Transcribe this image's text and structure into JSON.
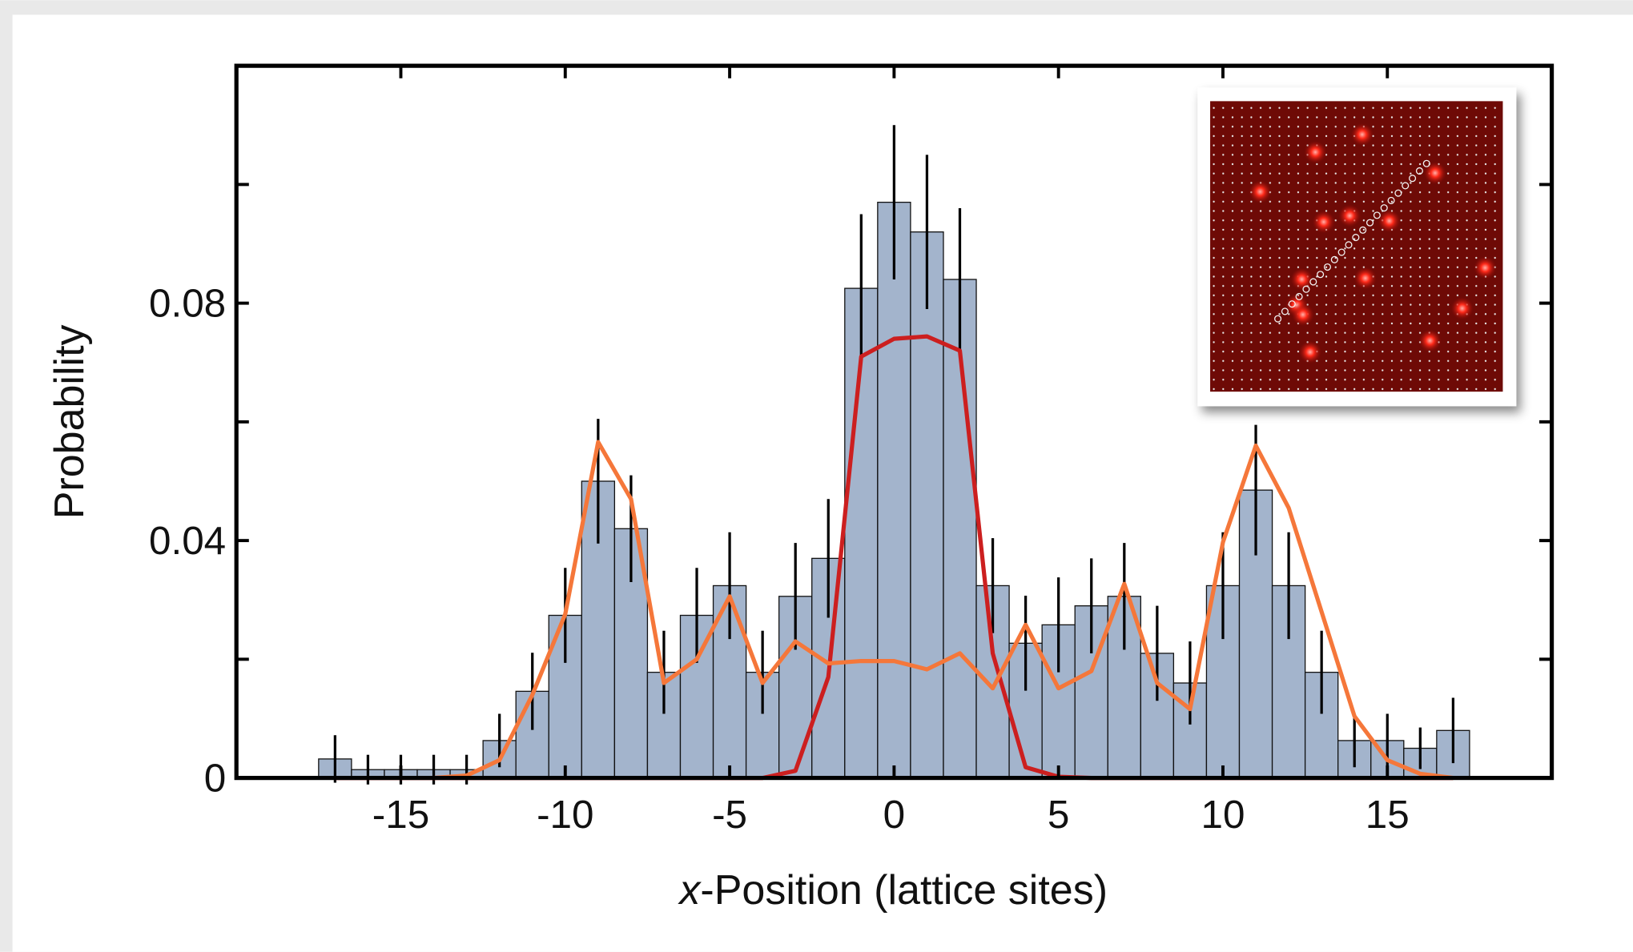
{
  "chart_data": {
    "type": "histogram",
    "ylabel": "Probability",
    "xlabel_var": "x",
    "xlabel": "-Position (lattice sites)",
    "bins": [
      -17.5,
      -16.5,
      -15.5,
      -14.5,
      -13.5,
      -12.5,
      -11.5,
      -10.5,
      -9.5,
      -8.5,
      -7.5,
      -6.5,
      -5.5,
      -4.5,
      -3.5,
      -2.5,
      -1.5,
      -0.5,
      0.5,
      1.5,
      2.5,
      3.5,
      4.5,
      5.5,
      6.5,
      7.5,
      8.5,
      9.5,
      10.5,
      11.5,
      12.5,
      13.5,
      14.5,
      15.5,
      16.5,
      17.5
    ],
    "values": [
      0.0032,
      0.0014,
      0.0014,
      0.0014,
      0.0014,
      0.0063,
      0.0146,
      0.0274,
      0.05,
      0.042,
      0.0178,
      0.0274,
      0.0324,
      0.0178,
      0.0306,
      0.037,
      0.0825,
      0.097,
      0.092,
      0.084,
      0.0324,
      0.0227,
      0.0258,
      0.029,
      0.0306,
      0.021,
      0.016,
      0.0324,
      0.0485,
      0.0324,
      0.0178,
      0.0063,
      0.0063,
      0.005,
      0.008
    ],
    "errors": [
      0.004,
      0.0025,
      0.0025,
      0.0025,
      0.0025,
      0.0045,
      0.0065,
      0.008,
      0.0105,
      0.009,
      0.007,
      0.008,
      0.009,
      0.007,
      0.009,
      0.01,
      0.0125,
      0.013,
      0.013,
      0.012,
      0.008,
      0.008,
      0.008,
      0.008,
      0.009,
      0.008,
      0.007,
      0.009,
      0.011,
      0.009,
      0.007,
      0.0045,
      0.0045,
      0.0035,
      0.0055
    ],
    "color": "#a3b4cc",
    "lines": [
      {
        "color": "#cc1f1f",
        "x": [
          -17,
          -16,
          -15,
          -14,
          -13,
          -12,
          -11,
          -10,
          -9,
          -8,
          -7,
          -6,
          -5,
          -4,
          -3,
          -2,
          -1,
          0,
          1,
          2,
          3,
          4,
          5,
          6,
          7,
          8,
          9,
          10,
          11,
          12,
          13,
          14,
          15,
          16,
          17
        ],
        "values": [
          0,
          0,
          0,
          0,
          0,
          0,
          0,
          0,
          0,
          0,
          0,
          0,
          0,
          0,
          0.0012,
          0.017,
          0.071,
          0.074,
          0.0744,
          0.072,
          0.021,
          0.0018,
          0.0002,
          0,
          0,
          0,
          0,
          0,
          0,
          0,
          0,
          0,
          0,
          0,
          0
        ]
      },
      {
        "color": "#f5773a",
        "x": [
          -14,
          -13,
          -12,
          -11,
          -10,
          -9,
          -8,
          -7,
          -6,
          -5,
          -4,
          -3,
          -2,
          -1,
          0,
          1,
          2,
          3,
          4,
          5,
          6,
          7,
          8,
          9,
          10,
          11,
          12,
          13,
          14,
          15,
          16,
          17
        ],
        "values": [
          0,
          0.0004,
          0.003,
          0.014,
          0.0276,
          0.0566,
          0.047,
          0.016,
          0.02,
          0.0306,
          0.016,
          0.023,
          0.0193,
          0.0197,
          0.0197,
          0.0183,
          0.021,
          0.0151,
          0.0258,
          0.0151,
          0.018,
          0.0327,
          0.016,
          0.0116,
          0.0397,
          0.056,
          0.0455,
          0.028,
          0.0104,
          0.003,
          0.0007,
          0
        ]
      }
    ],
    "xlim": [
      -20,
      20
    ],
    "xticks": [
      -15,
      -10,
      -5,
      0,
      5,
      10,
      15
    ],
    "ylim": [
      0,
      0.12
    ],
    "yticks": [
      0,
      0.04,
      0.08
    ],
    "yminor": [
      0.02,
      0.06,
      0.1
    ]
  }
}
